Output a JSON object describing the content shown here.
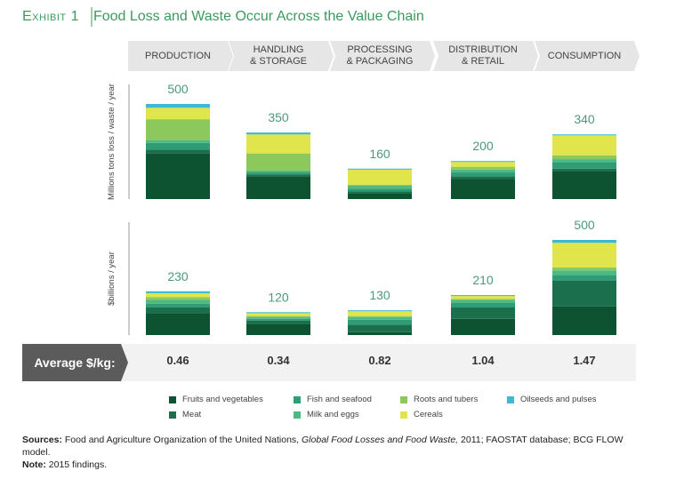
{
  "exhibit": "Exhibit 1",
  "title": "Food Loss and Waste Occur Across the Value Chain",
  "stages": [
    "PRODUCTION",
    "HANDLING\n& STORAGE",
    "PROCESSING\n& PACKAGING",
    "DISTRIBUTION\n& RETAIL",
    "CONSUMPTION"
  ],
  "chart_data": [
    {
      "type": "bar",
      "stacked": true,
      "y_label": "Millions tons loss / waste / year",
      "totals": [
        500,
        350,
        160,
        200,
        340
      ],
      "series": [
        {
          "name": "Fruits and vegetables",
          "color": "#0d5331",
          "values": [
            240,
            120,
            30,
            105,
            145
          ]
        },
        {
          "name": "Meat",
          "color": "#1c6f4c",
          "values": [
            20,
            10,
            10,
            15,
            15
          ]
        },
        {
          "name": "Fish and seafood",
          "color": "#2f9c76",
          "values": [
            35,
            10,
            15,
            20,
            35
          ]
        },
        {
          "name": "Milk and eggs",
          "color": "#4dba84",
          "values": [
            15,
            10,
            15,
            15,
            15
          ]
        },
        {
          "name": "Roots and tubers",
          "color": "#8cc85c",
          "values": [
            110,
            90,
            5,
            15,
            20
          ]
        },
        {
          "name": "Cereals",
          "color": "#e1e54c",
          "values": [
            60,
            100,
            80,
            25,
            105
          ]
        },
        {
          "name": "Oilseeds and pulses",
          "color": "#3bb8d4",
          "values": [
            20,
            10,
            5,
            5,
            5
          ]
        }
      ]
    },
    {
      "type": "bar",
      "stacked": true,
      "y_label": "$billions / year",
      "totals": [
        230,
        120,
        130,
        210,
        500
      ],
      "series": [
        {
          "name": "Fruits and vegetables",
          "color": "#0d5331",
          "values": [
            115,
            60,
            15,
            85,
            150
          ]
        },
        {
          "name": "Meat",
          "color": "#1c6f4c",
          "values": [
            30,
            15,
            40,
            60,
            135
          ]
        },
        {
          "name": "Fish and seafood",
          "color": "#2f9c76",
          "values": [
            20,
            10,
            25,
            25,
            30
          ]
        },
        {
          "name": "Milk and eggs",
          "color": "#4dba84",
          "values": [
            20,
            10,
            15,
            15,
            25
          ]
        },
        {
          "name": "Roots and tubers",
          "color": "#8cc85c",
          "values": [
            15,
            5,
            5,
            5,
            15
          ]
        },
        {
          "name": "Cereals",
          "color": "#e1e54c",
          "values": [
            20,
            15,
            25,
            15,
            130
          ]
        },
        {
          "name": "Oilseeds and pulses",
          "color": "#3bb8d4",
          "values": [
            10,
            5,
            5,
            5,
            15
          ]
        }
      ]
    }
  ],
  "average": {
    "label": "Average $/kg:",
    "values": [
      0.46,
      0.34,
      0.82,
      1.04,
      1.47
    ]
  },
  "sources": {
    "label": "Sources:",
    "parts": [
      "Food and Agriculture Organization of the United Nations, ",
      "Global Food Losses and Food Waste,",
      " 2011; FAOSTAT database; BCG FLOW model."
    ]
  },
  "note": {
    "label": "Note:",
    "text": "2015 findings."
  }
}
